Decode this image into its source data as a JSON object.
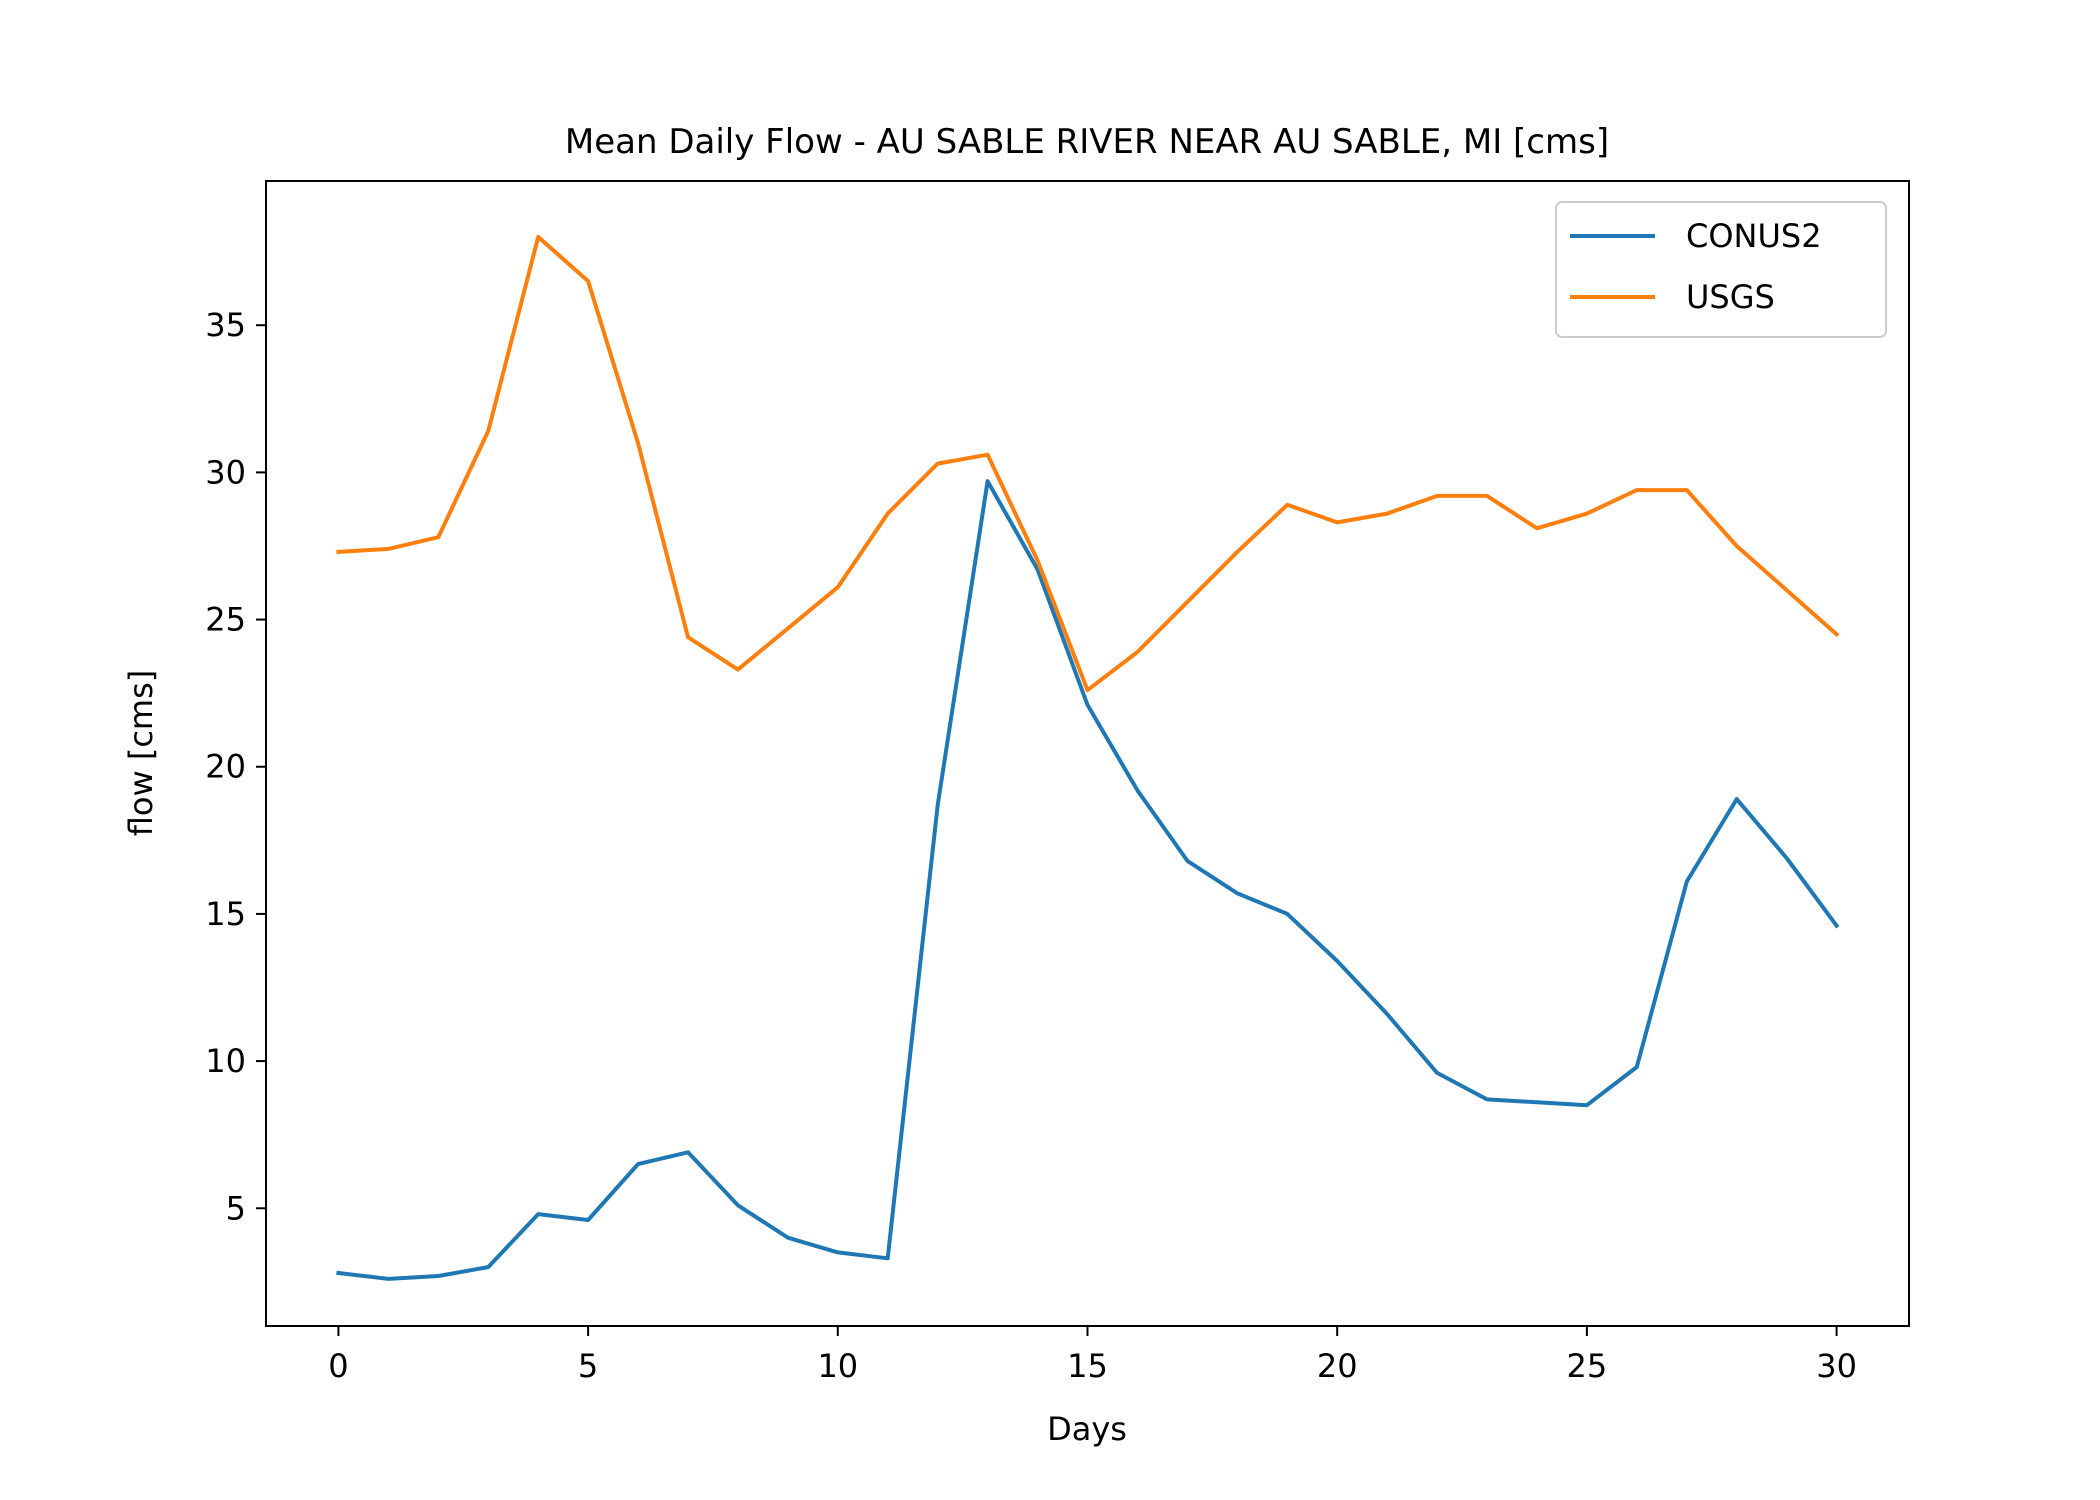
{
  "chart_data": {
    "type": "line",
    "title": "Mean Daily Flow - AU SABLE RIVER NEAR AU SABLE, MI [cms]",
    "xlabel": "Days",
    "ylabel": "flow [cms]",
    "xlim": [
      -1.45,
      31.45
    ],
    "ylim": [
      1.0,
      39.9
    ],
    "xticks": [
      0,
      5,
      10,
      15,
      20,
      25,
      30
    ],
    "yticks": [
      5,
      10,
      15,
      20,
      25,
      30,
      35
    ],
    "grid": false,
    "legend_position": "upper right",
    "x": [
      0,
      1,
      2,
      3,
      4,
      5,
      6,
      7,
      8,
      9,
      10,
      11,
      12,
      13,
      14,
      15,
      16,
      17,
      18,
      19,
      20,
      21,
      22,
      23,
      24,
      25,
      26,
      27,
      28,
      29,
      30
    ],
    "series": [
      {
        "name": "CONUS2",
        "color": "#1f77b4",
        "values": [
          2.8,
          2.6,
          2.7,
          3.0,
          4.8,
          4.6,
          6.5,
          6.9,
          5.1,
          4.0,
          3.5,
          3.3,
          18.7,
          29.7,
          26.7,
          22.1,
          19.2,
          16.8,
          15.7,
          15.0,
          13.4,
          11.6,
          9.6,
          8.7,
          8.6,
          8.5,
          9.8,
          16.1,
          18.9,
          16.9,
          14.6
        ]
      },
      {
        "name": "USGS",
        "color": "#ff7f0e",
        "values": [
          27.3,
          27.4,
          27.8,
          31.4,
          38.0,
          36.5,
          31.0,
          24.4,
          23.3,
          24.7,
          26.1,
          28.6,
          30.3,
          30.6,
          27.0,
          22.6,
          23.9,
          25.6,
          27.3,
          28.9,
          28.3,
          28.6,
          29.2,
          29.2,
          28.1,
          28.6,
          29.4,
          29.4,
          27.5,
          26.0,
          24.5
        ]
      }
    ]
  }
}
